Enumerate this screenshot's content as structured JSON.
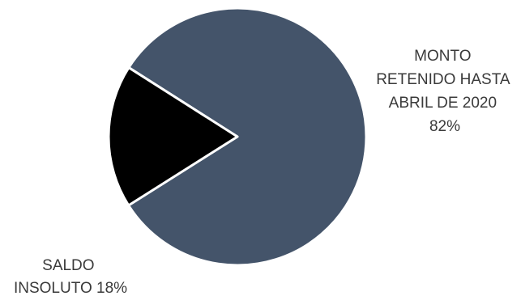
{
  "chart_data": {
    "type": "pie",
    "title": "",
    "slices": [
      {
        "label_lines": [
          "MONTO",
          "RETENIDO HASTA",
          "ABRIL DE 2020",
          "82%"
        ],
        "value": 82,
        "color": "#44546a"
      },
      {
        "label_lines": [
          "SALDO",
          "INSOLUTO 18%"
        ],
        "value": 18,
        "color": "#000000"
      }
    ],
    "legend": "none"
  }
}
